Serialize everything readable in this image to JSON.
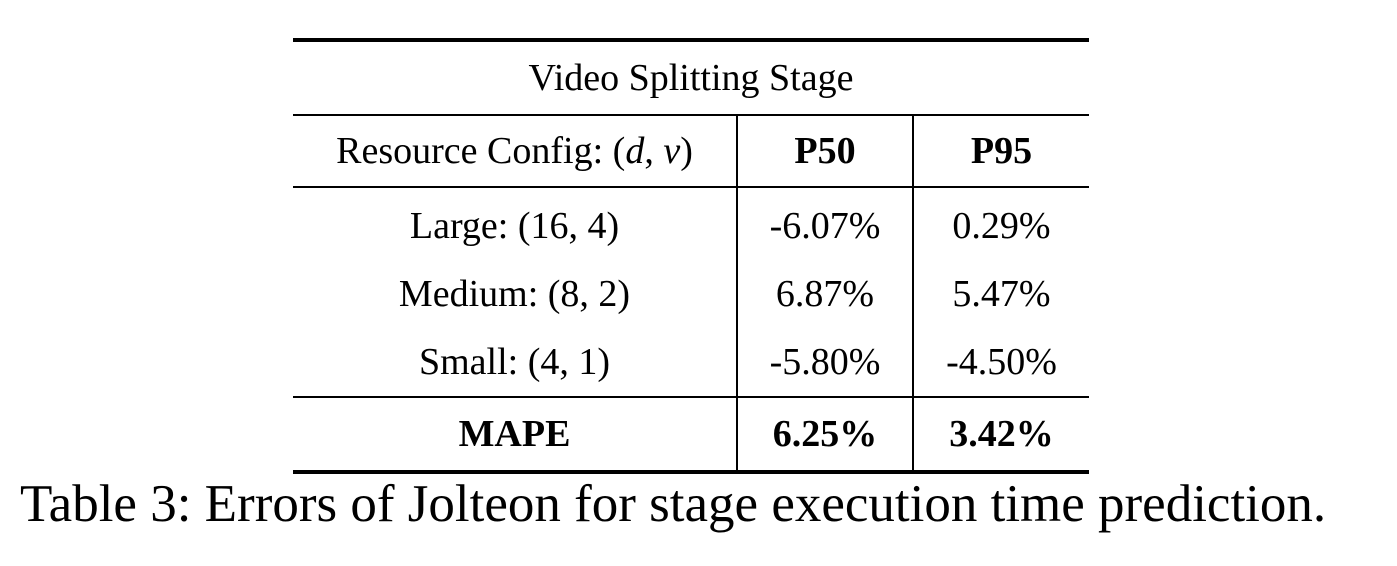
{
  "table": {
    "stage_title": "Video Splitting Stage",
    "header": {
      "config_label_prefix": "Resource Config: (",
      "config_label_d": "d",
      "config_label_sep": ", ",
      "config_label_v": "v",
      "config_label_suffix": ")",
      "p50": "P50",
      "p95": "P95"
    },
    "rows": [
      {
        "config": "Large: (16, 4)",
        "p50": "-6.07%",
        "p95": "0.29%"
      },
      {
        "config": "Medium: (8, 2)",
        "p50": "6.87%",
        "p95": "5.47%"
      },
      {
        "config": "Small: (4, 1)",
        "p50": "-5.80%",
        "p95": "-4.50%"
      }
    ],
    "summary": {
      "label": "MAPE",
      "p50": "6.25%",
      "p95": "3.42%"
    }
  },
  "caption": "Table 3: Errors of Jolteon for stage execution time prediction."
}
